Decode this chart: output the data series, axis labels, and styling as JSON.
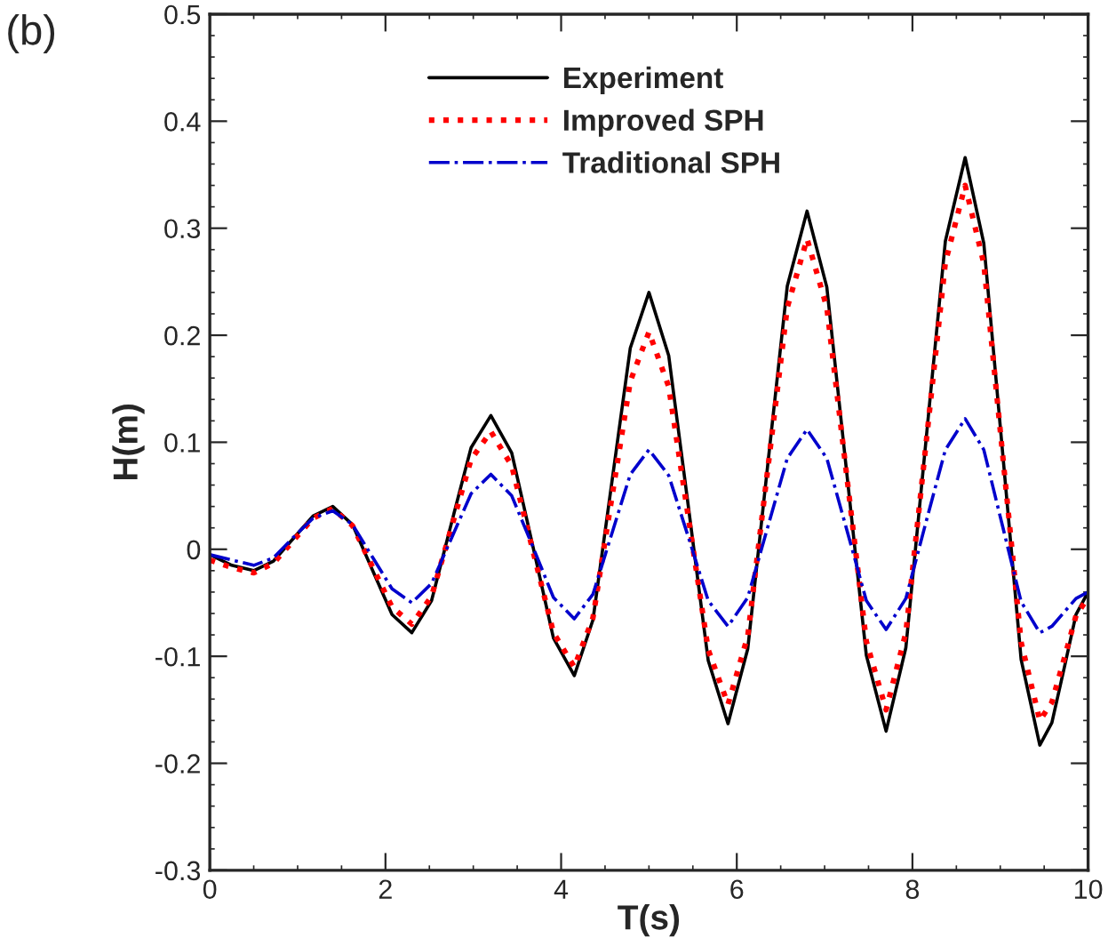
{
  "chart_data": {
    "type": "line",
    "xlabel": "T(s)",
    "ylabel": "H(m)",
    "annotations": [
      "(b)"
    ],
    "x": [
      0,
      0.25,
      0.5,
      0.725,
      0.95,
      1.175,
      1.4,
      1.625,
      1.85,
      2.075,
      2.3,
      2.525,
      2.75,
      2.975,
      3.2,
      3.4375,
      3.675,
      3.9125,
      4.15,
      4.3625,
      4.575,
      4.7875,
      5.0,
      5.225,
      5.45,
      5.675,
      5.9,
      6.125,
      6.35,
      6.575,
      6.8,
      7.025,
      7.25,
      7.475,
      7.7,
      7.925,
      8.15,
      8.375,
      8.6,
      8.8125,
      9.025,
      9.2375,
      9.45,
      9.5875,
      9.725,
      9.8625,
      10
    ],
    "series": [
      {
        "name": "Experiment",
        "color": "#000000",
        "line_style": "solid",
        "values": [
          -0.005,
          -0.015,
          -0.02,
          -0.011,
          0.01,
          0.031,
          0.04,
          0.023,
          -0.019,
          -0.061,
          -0.078,
          -0.048,
          0.024,
          0.095,
          0.125,
          0.09,
          0.004,
          -0.083,
          -0.118,
          -0.066,
          0.061,
          0.188,
          0.24,
          0.181,
          0.039,
          -0.104,
          -0.163,
          -0.093,
          0.077,
          0.246,
          0.316,
          0.245,
          0.073,
          -0.099,
          -0.17,
          -0.092,
          0.098,
          0.288,
          0.366,
          0.286,
          0.092,
          -0.103,
          -0.183,
          -0.162,
          -0.112,
          -0.061,
          -0.04
        ]
      },
      {
        "name": "Improved SPH",
        "color": "#ff0000",
        "line_style": "dotted",
        "values": [
          -0.01,
          -0.017,
          -0.022,
          -0.013,
          0.008,
          0.029,
          0.038,
          0.022,
          -0.016,
          -0.054,
          -0.07,
          -0.044,
          0.02,
          0.084,
          0.11,
          0.078,
          0,
          -0.078,
          -0.11,
          -0.064,
          0.047,
          0.157,
          0.203,
          0.152,
          0.029,
          -0.094,
          -0.145,
          -0.081,
          0.073,
          0.226,
          0.29,
          0.226,
          0.07,
          -0.086,
          -0.15,
          -0.078,
          0.095,
          0.268,
          0.34,
          0.267,
          0.09,
          -0.087,
          -0.16,
          -0.143,
          -0.103,
          -0.062,
          -0.045
        ]
      },
      {
        "name": "Traditional SPH",
        "color": "#0000cc",
        "line_style": "dashdot",
        "values": [
          -0.005,
          -0.01,
          -0.015,
          -0.008,
          0.011,
          0.029,
          0.036,
          0.023,
          -0.007,
          -0.037,
          -0.05,
          -0.032,
          0.01,
          0.052,
          0.07,
          0.05,
          0.003,
          -0.045,
          -0.065,
          -0.042,
          0.014,
          0.07,
          0.093,
          0.069,
          0.011,
          -0.048,
          -0.072,
          -0.045,
          0.02,
          0.085,
          0.112,
          0.085,
          0.019,
          -0.048,
          -0.075,
          -0.046,
          0.024,
          0.093,
          0.122,
          0.093,
          0.022,
          -0.049,
          -0.078,
          -0.072,
          -0.059,
          -0.046,
          -0.04
        ]
      }
    ],
    "xlim": [
      0,
      10
    ],
    "xticks": [
      0,
      2,
      4,
      6,
      8,
      10
    ],
    "ylim": [
      -0.3,
      0.5
    ],
    "yticks": [
      {
        "value": -0.3,
        "label": "-0.3"
      },
      {
        "value": -0.2,
        "label": "-0.2"
      },
      {
        "value": -0.1,
        "label": "-0.1"
      },
      0,
      0.1,
      0.2,
      0.3,
      0.4,
      0.5
    ],
    "grid": false,
    "legend": "top",
    "marker": "none"
  }
}
